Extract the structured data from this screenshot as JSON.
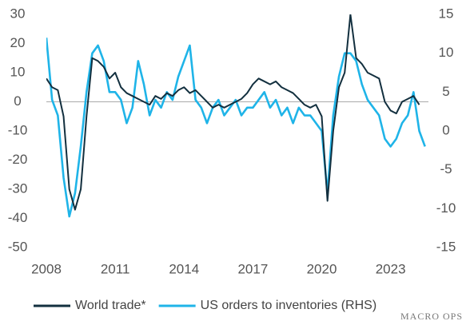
{
  "chart_data": {
    "type": "line",
    "x": [
      2008,
      2008.25,
      2008.5,
      2008.75,
      2009,
      2009.25,
      2009.5,
      2009.75,
      2010,
      2010.25,
      2010.5,
      2010.75,
      2011,
      2011.25,
      2011.5,
      2011.75,
      2012,
      2012.25,
      2012.5,
      2012.75,
      2013,
      2013.25,
      2013.5,
      2013.75,
      2014,
      2014.25,
      2014.5,
      2014.75,
      2015,
      2015.25,
      2015.5,
      2015.75,
      2016,
      2016.25,
      2016.5,
      2016.75,
      2017,
      2017.25,
      2017.5,
      2017.75,
      2018,
      2018.25,
      2018.5,
      2018.75,
      2019,
      2019.25,
      2019.5,
      2019.75,
      2020,
      2020.25,
      2020.5,
      2020.75,
      2021,
      2021.25,
      2021.5,
      2021.75,
      2022,
      2022.25,
      2022.5,
      2022.75,
      2023,
      2023.25,
      2023.5,
      2023.75,
      2024,
      2024.25,
      2024.5
    ],
    "series": [
      {
        "name": "World trade*",
        "color": "#13303f",
        "values": [
          8,
          5,
          4,
          -5,
          -30,
          -37,
          -30,
          -5,
          15,
          14,
          12,
          8,
          10,
          5,
          3,
          2,
          1,
          0,
          -1,
          2,
          1,
          3,
          2,
          4,
          5,
          3,
          4,
          2,
          0,
          -2,
          -1,
          -2,
          -1,
          0,
          1,
          3,
          6,
          8,
          7,
          6,
          7,
          5,
          4,
          3,
          1,
          -1,
          -2,
          -1,
          -5,
          -34,
          -10,
          5,
          10,
          30,
          15,
          13,
          10,
          9,
          8,
          0,
          -3,
          -4,
          0,
          1,
          2,
          -1,
          null
        ]
      },
      {
        "name": "US orders to inventories (RHS)",
        "color": "#1fb4e8",
        "axis": "y2",
        "values": [
          12,
          4,
          2,
          -6,
          -11,
          -8,
          -2,
          5,
          10,
          11,
          9,
          5,
          5,
          4,
          1,
          3,
          9,
          6,
          2,
          4,
          3,
          5,
          4,
          7,
          9,
          11,
          4,
          3,
          1,
          3,
          4,
          2,
          3,
          4,
          2,
          3,
          3,
          4,
          5,
          3,
          4,
          2,
          3,
          1,
          3,
          2,
          2,
          1,
          0,
          -8,
          2,
          7,
          10,
          10,
          9,
          6,
          4,
          3,
          2,
          -1,
          -2,
          -1,
          1,
          2,
          5,
          0,
          -2
        ]
      }
    ],
    "xlim": [
      2008,
      2024.65
    ],
    "xticks": [
      2008,
      2011,
      2014,
      2017,
      2020,
      2023
    ],
    "ylim": [
      -50,
      30
    ],
    "yticks": [
      -50,
      -40,
      -30,
      -20,
      -10,
      0,
      10,
      20,
      30
    ],
    "y2lim": [
      -15,
      15
    ],
    "y2ticks": [
      -15,
      -10,
      -5,
      0,
      5,
      10,
      15
    ],
    "legend": "bottom",
    "watermark": "MACRO OPS"
  }
}
